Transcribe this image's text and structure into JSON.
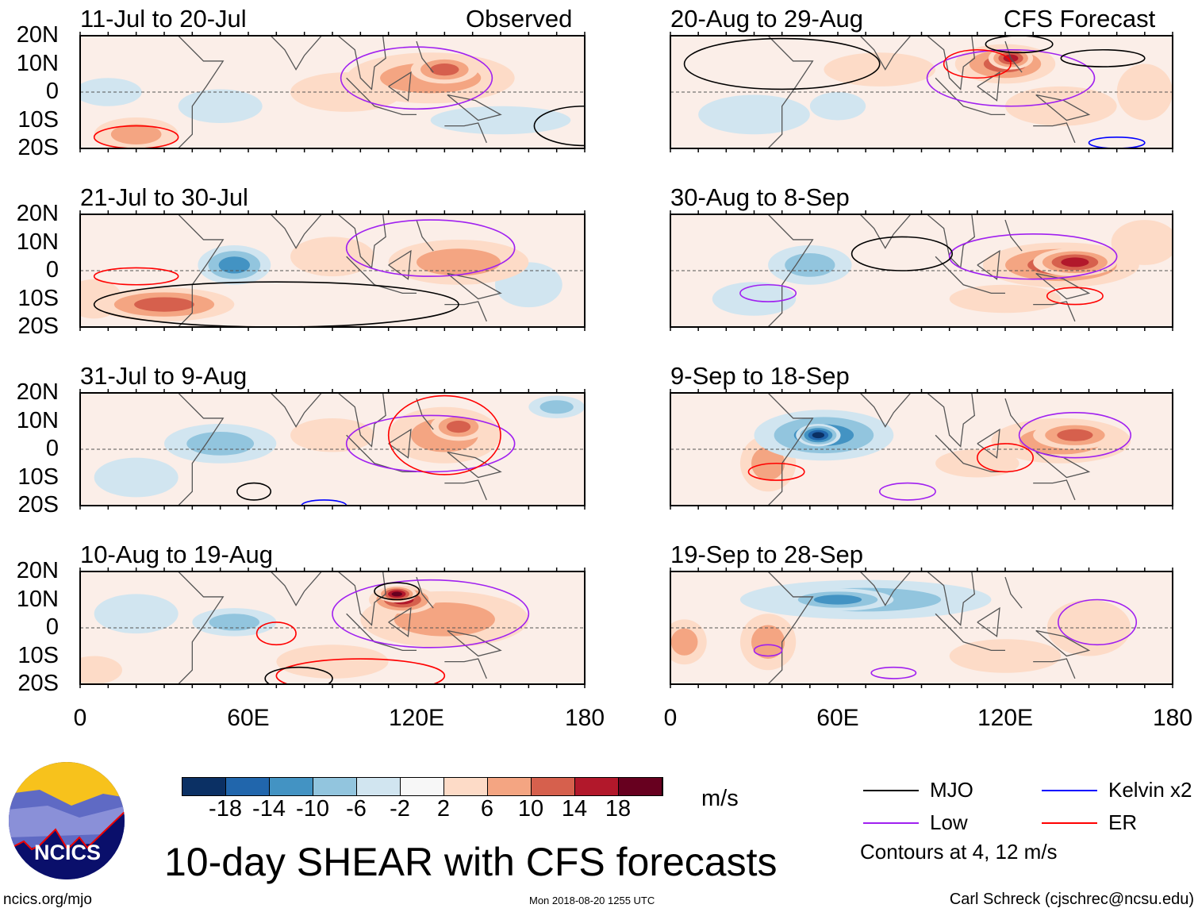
{
  "title": "10-day SHEAR with CFS forecasts",
  "units": "m/s",
  "site": "ncics.org/mjo",
  "timestamp": "Mon 2018-08-20 1255 UTC",
  "author": "Carl Schreck (cjschrec@ncsu.edu)",
  "logo_text": "NCICS",
  "left_tag": "Observed",
  "right_tag": "CFS Forecast",
  "lat_labels": [
    "20N",
    "10N",
    "0",
    "10S",
    "20S"
  ],
  "lon_labels": [
    "0",
    "60E",
    "120E",
    "180"
  ],
  "colorbar": {
    "ticks": [
      "-18",
      "-14",
      "-10",
      "-6",
      "-2",
      "2",
      "6",
      "10",
      "14",
      "18"
    ],
    "colors": [
      "#0b3064",
      "#2166ac",
      "#4393c3",
      "#92c5de",
      "#d1e5f0",
      "#f7f7f7",
      "#fddbc7",
      "#f4a582",
      "#d6604d",
      "#b2182b",
      "#67001f"
    ]
  },
  "legend": {
    "items": [
      {
        "label": "MJO",
        "color": "#000000"
      },
      {
        "label": "Kelvin x2",
        "color": "#0000ff"
      },
      {
        "label": "Low",
        "color": "#a020f0"
      },
      {
        "label": "ER",
        "color": "#ff0000"
      }
    ],
    "note": "Contours at 4, 12 m/s"
  },
  "panels": [
    {
      "title": "11-Jul to 20-Jul",
      "side": "left",
      "row": 0,
      "shading": [
        [
          125,
          5,
          30,
          9,
          8
        ],
        [
          130,
          8,
          12,
          5,
          12
        ],
        [
          95,
          0,
          20,
          7,
          5
        ],
        [
          10,
          0,
          12,
          5,
          -4
        ],
        [
          50,
          -5,
          15,
          6,
          -4
        ],
        [
          150,
          -10,
          25,
          5,
          -3
        ],
        [
          20,
          -15,
          15,
          6,
          6
        ]
      ],
      "contours": [
        [
          "Low",
          120,
          5,
          27,
          11
        ],
        [
          "ER",
          20,
          -16,
          15,
          4
        ],
        [
          "MJO",
          180,
          -12,
          18,
          7
        ]
      ]
    },
    {
      "title": "20-Aug to 29-Aug",
      "side": "right",
      "row": 0,
      "shading": [
        [
          120,
          10,
          18,
          7,
          10
        ],
        [
          122,
          12,
          8,
          4,
          16
        ],
        [
          75,
          8,
          20,
          6,
          5
        ],
        [
          140,
          -5,
          20,
          7,
          5
        ],
        [
          30,
          -8,
          20,
          7,
          -4
        ],
        [
          60,
          -5,
          10,
          5,
          -3
        ],
        [
          170,
          0,
          10,
          10,
          3
        ]
      ],
      "contours": [
        [
          "Low",
          122,
          5,
          30,
          10
        ],
        [
          "ER",
          110,
          10,
          12,
          5
        ],
        [
          "MJO",
          125,
          17,
          12,
          3
        ],
        [
          "MJO",
          155,
          12,
          15,
          3
        ],
        [
          "MJO",
          40,
          10,
          35,
          9
        ],
        [
          "Kelvin",
          160,
          -18,
          10,
          2
        ]
      ]
    },
    {
      "title": "21-Jul to 30-Jul",
      "side": "left",
      "row": 1,
      "shading": [
        [
          55,
          2,
          13,
          7,
          -12
        ],
        [
          30,
          -12,
          25,
          6,
          10
        ],
        [
          135,
          3,
          25,
          8,
          6
        ],
        [
          90,
          5,
          15,
          7,
          4
        ],
        [
          160,
          -5,
          12,
          8,
          -3
        ],
        [
          5,
          -10,
          10,
          7,
          4
        ]
      ],
      "contours": [
        [
          "Low",
          125,
          8,
          30,
          10
        ],
        [
          "ER",
          20,
          -2,
          15,
          3
        ],
        [
          "MJO",
          70,
          -12,
          65,
          8
        ]
      ]
    },
    {
      "title": "30-Aug to 8-Sep",
      "side": "right",
      "row": 1,
      "shading": [
        [
          50,
          2,
          15,
          7,
          -8
        ],
        [
          140,
          2,
          28,
          8,
          10
        ],
        [
          145,
          3,
          15,
          5,
          14
        ],
        [
          120,
          -10,
          20,
          5,
          3
        ],
        [
          30,
          -10,
          15,
          6,
          -3
        ],
        [
          170,
          10,
          12,
          8,
          3
        ]
      ],
      "contours": [
        [
          "Low",
          130,
          5,
          30,
          8
        ],
        [
          "MJO",
          83,
          6,
          18,
          6
        ],
        [
          "ER",
          145,
          -9,
          10,
          3
        ],
        [
          "Low",
          35,
          -8,
          10,
          3
        ]
      ]
    },
    {
      "title": "31-Jul to 9-Aug",
      "side": "left",
      "row": 2,
      "shading": [
        [
          50,
          2,
          20,
          7,
          -8
        ],
        [
          130,
          5,
          20,
          10,
          8
        ],
        [
          135,
          8,
          10,
          5,
          12
        ],
        [
          90,
          5,
          15,
          6,
          4
        ],
        [
          170,
          15,
          10,
          4,
          -8
        ],
        [
          20,
          -10,
          15,
          7,
          -4
        ]
      ],
      "contours": [
        [
          "Low",
          125,
          2,
          30,
          10
        ],
        [
          "ER",
          130,
          5,
          20,
          14
        ],
        [
          "MJO",
          62,
          -15,
          6,
          3
        ],
        [
          "Kelvin",
          87,
          -20,
          8,
          2
        ]
      ]
    },
    {
      "title": "9-Sep to 18-Sep",
      "side": "right",
      "row": 2,
      "shading": [
        [
          55,
          5,
          25,
          9,
          -10
        ],
        [
          53,
          5,
          8,
          4,
          -18
        ],
        [
          140,
          3,
          25,
          8,
          8
        ],
        [
          145,
          5,
          15,
          5,
          12
        ],
        [
          35,
          -5,
          10,
          10,
          6
        ],
        [
          110,
          -5,
          15,
          5,
          4
        ]
      ],
      "contours": [
        [
          "Low",
          145,
          5,
          20,
          8
        ],
        [
          "ER",
          120,
          -3,
          10,
          5
        ],
        [
          "ER",
          38,
          -8,
          10,
          3
        ],
        [
          "Low",
          85,
          -15,
          10,
          3
        ]
      ]
    },
    {
      "title": "10-Aug to 19-Aug",
      "side": "left",
      "row": 3,
      "shading": [
        [
          115,
          10,
          12,
          5,
          14
        ],
        [
          113,
          12,
          7,
          3,
          20
        ],
        [
          130,
          3,
          30,
          10,
          8
        ],
        [
          55,
          2,
          15,
          5,
          -6
        ],
        [
          20,
          5,
          15,
          7,
          -4
        ],
        [
          90,
          -12,
          20,
          6,
          5
        ],
        [
          5,
          -15,
          10,
          5,
          4
        ]
      ],
      "contours": [
        [
          "Low",
          125,
          5,
          35,
          12
        ],
        [
          "MJO",
          113,
          13,
          8,
          3
        ],
        [
          "ER",
          70,
          -2,
          7,
          4
        ],
        [
          "ER",
          100,
          -17,
          30,
          6
        ],
        [
          "MJO",
          78,
          -18,
          12,
          4
        ]
      ]
    },
    {
      "title": "19-Sep to 28-Sep",
      "side": "right",
      "row": 3,
      "shading": [
        [
          70,
          10,
          45,
          7,
          -8
        ],
        [
          60,
          10,
          20,
          4,
          -12
        ],
        [
          150,
          0,
          15,
          10,
          5
        ],
        [
          35,
          -5,
          10,
          10,
          6
        ],
        [
          5,
          -5,
          8,
          8,
          6
        ],
        [
          120,
          -10,
          20,
          6,
          3
        ]
      ],
      "contours": [
        [
          "Low",
          153,
          2,
          14,
          8
        ],
        [
          "Low",
          80,
          -16,
          8,
          2
        ],
        [
          "Low",
          35,
          -8,
          5,
          2
        ]
      ]
    }
  ]
}
